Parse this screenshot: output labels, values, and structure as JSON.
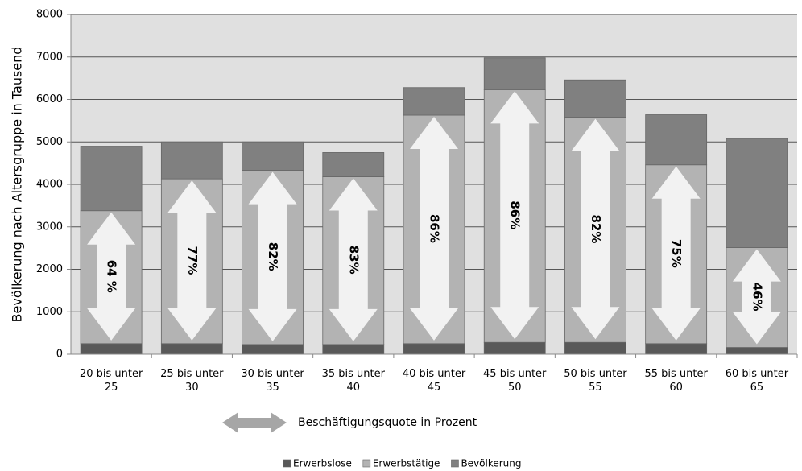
{
  "chart_data": {
    "type": "stacked-bar",
    "y_label": "Bevölkerung nach Altersgruppe in Tausend",
    "categories": [
      "20 bis unter 25",
      "25 bis unter 30",
      "30 bis unter 35",
      "35 bis unter 40",
      "40 bis unter 45",
      "45 bis unter 50",
      "50 bis unter 55",
      "55 bis unter 60",
      "60 bis unter 65"
    ],
    "series": [
      {
        "name": "Erwerbslose",
        "color": "#595959",
        "values": [
          250,
          250,
          230,
          230,
          250,
          280,
          280,
          250,
          160
        ]
      },
      {
        "name": "Erwerbstätige",
        "color": "#b3b3b3",
        "values": [
          3130,
          3880,
          4100,
          3950,
          5380,
          5950,
          5300,
          4210,
          2350
        ]
      },
      {
        "name": "Bevölkerung",
        "color": "#808080",
        "values": [
          1520,
          870,
          670,
          570,
          650,
          750,
          880,
          1180,
          2570
        ]
      }
    ],
    "arrows": {
      "name": "Beschäftigungsquote in Prozent",
      "color": "#f2f2f2",
      "values": [
        64,
        77,
        82,
        83,
        86,
        86,
        82,
        75,
        46
      ],
      "value_labels": [
        "64 %",
        "77%",
        "82%",
        "83%",
        "86%",
        "86%",
        "82%",
        "75%",
        "46%"
      ]
    },
    "ylim": [
      0,
      8000
    ],
    "yticks": [
      0,
      1000,
      2000,
      3000,
      4000,
      5000,
      6000,
      7000,
      8000
    ],
    "grid": true,
    "plot_background": "#e0e0e0"
  }
}
